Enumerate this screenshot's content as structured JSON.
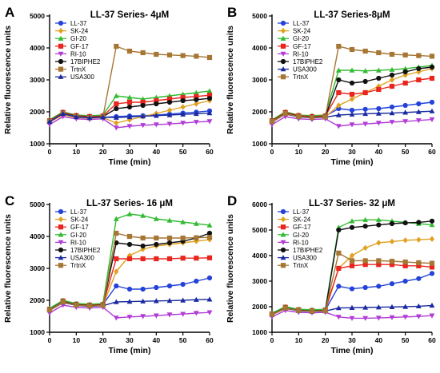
{
  "chart_data": [
    {
      "panel": "A",
      "type": "line",
      "title": "LL-37 Series- 4μM",
      "xlabel": "Time (min)",
      "ylabel": "Relative fluorescence units",
      "xlim": [
        0,
        60
      ],
      "ylim": [
        1000,
        5000
      ],
      "xticks": [
        "0",
        "10",
        "20",
        "30",
        "40",
        "50",
        "60"
      ],
      "yticks": [
        "1000",
        "2000",
        "3000",
        "4000",
        "5000"
      ],
      "x": [
        0,
        5,
        10,
        15,
        20,
        25,
        30,
        35,
        40,
        45,
        50,
        55,
        60
      ],
      "legend_position": "top-left",
      "series": [
        {
          "name": "LL-37",
          "color": "#2342d8",
          "marker": "circle",
          "values": [
            1700,
            1950,
            1850,
            1820,
            1830,
            1850,
            1870,
            1880,
            1900,
            1930,
            1960,
            1990,
            2030
          ]
        },
        {
          "name": "SK-24",
          "color": "#e0a020",
          "marker": "diamond",
          "values": [
            1680,
            1900,
            1820,
            1800,
            1820,
            1650,
            1750,
            1850,
            1950,
            2050,
            2150,
            2250,
            2350
          ]
        },
        {
          "name": "GI-20",
          "color": "#33bb33",
          "marker": "triangle",
          "values": [
            1750,
            2000,
            1900,
            1880,
            1900,
            2500,
            2450,
            2400,
            2450,
            2500,
            2550,
            2600,
            2650
          ]
        },
        {
          "name": "GF-17",
          "color": "#e8261e",
          "marker": "square",
          "values": [
            1720,
            1980,
            1880,
            1850,
            1870,
            2250,
            2300,
            2300,
            2350,
            2400,
            2450,
            2480,
            2520
          ]
        },
        {
          "name": "RI-10",
          "color": "#b23cd6",
          "marker": "triangle-down",
          "values": [
            1600,
            1850,
            1780,
            1760,
            1780,
            1500,
            1550,
            1580,
            1600,
            1620,
            1650,
            1680,
            1700
          ]
        },
        {
          "name": "17BIPHE2",
          "color": "#111111",
          "marker": "circle",
          "values": [
            1710,
            1960,
            1860,
            1830,
            1850,
            2100,
            2150,
            2200,
            2250,
            2300,
            2350,
            2380,
            2420
          ]
        },
        {
          "name": "TrtnX",
          "color": "#a67634",
          "marker": "square",
          "values": [
            1700,
            1950,
            1850,
            1820,
            1840,
            4050,
            3900,
            3850,
            3800,
            3780,
            3760,
            3740,
            3700
          ]
        },
        {
          "name": "USA300",
          "color": "#1a2aa0",
          "marker": "triangle",
          "values": [
            1690,
            1940,
            1840,
            1810,
            1830,
            1820,
            1840,
            1860,
            1880,
            1900,
            1920,
            1940,
            1960
          ]
        }
      ]
    },
    {
      "panel": "B",
      "type": "line",
      "title": "LL-37 Series-8μM",
      "xlabel": "Time (min)",
      "ylabel": "Relative fluorescence units",
      "xlim": [
        0,
        60
      ],
      "ylim": [
        1000,
        5000
      ],
      "xticks": [
        "0",
        "10",
        "20",
        "30",
        "40",
        "50",
        "60"
      ],
      "yticks": [
        "1000",
        "2000",
        "3000",
        "4000",
        "5000"
      ],
      "x": [
        0,
        5,
        10,
        15,
        20,
        25,
        30,
        35,
        40,
        45,
        50,
        55,
        60
      ],
      "legend_position": "top-left",
      "series": [
        {
          "name": "LL-37",
          "color": "#2342d8",
          "marker": "circle",
          "values": [
            1700,
            1950,
            1880,
            1850,
            1870,
            2100,
            2050,
            2080,
            2100,
            2150,
            2200,
            2250,
            2300
          ]
        },
        {
          "name": "SK-24",
          "color": "#e0a020",
          "marker": "diamond",
          "values": [
            1680,
            1920,
            1850,
            1820,
            1840,
            2200,
            2400,
            2600,
            2800,
            3000,
            3150,
            3250,
            3350
          ]
        },
        {
          "name": "GI-20",
          "color": "#33bb33",
          "marker": "triangle",
          "values": [
            1750,
            2000,
            1900,
            1880,
            1900,
            3300,
            3300,
            3280,
            3300,
            3320,
            3350,
            3400,
            3450
          ]
        },
        {
          "name": "GF-17",
          "color": "#e8261e",
          "marker": "square",
          "values": [
            1720,
            1980,
            1880,
            1850,
            1870,
            2600,
            2550,
            2600,
            2700,
            2800,
            2900,
            3000,
            3050
          ]
        },
        {
          "name": "RI-10",
          "color": "#b23cd6",
          "marker": "triangle-down",
          "values": [
            1600,
            1850,
            1780,
            1760,
            1780,
            1550,
            1600,
            1620,
            1650,
            1680,
            1700,
            1730,
            1760
          ]
        },
        {
          "name": "17BIPHE2",
          "color": "#111111",
          "marker": "circle",
          "values": [
            1710,
            1960,
            1860,
            1830,
            1850,
            3000,
            2900,
            2950,
            3050,
            3150,
            3250,
            3350,
            3400
          ]
        },
        {
          "name": "USA300",
          "color": "#1a2aa0",
          "marker": "triangle",
          "values": [
            1690,
            1940,
            1840,
            1810,
            1830,
            1900,
            1920,
            1940,
            1950,
            1960,
            1980,
            2000,
            2020
          ]
        },
        {
          "name": "TrtnX",
          "color": "#a67634",
          "marker": "square",
          "values": [
            1700,
            1950,
            1850,
            1820,
            1840,
            4050,
            3950,
            3900,
            3850,
            3800,
            3780,
            3760,
            3740
          ]
        }
      ]
    },
    {
      "panel": "C",
      "type": "line",
      "title": "LL-37 Series- 16 μM",
      "xlabel": "Time (min)",
      "ylabel": "Relative fluorescence units",
      "xlim": [
        0,
        60
      ],
      "ylim": [
        1000,
        5000
      ],
      "xticks": [
        "0",
        "10",
        "20",
        "30",
        "40",
        "50",
        "60"
      ],
      "yticks": [
        "1000",
        "2000",
        "3000",
        "4000",
        "5000"
      ],
      "x": [
        0,
        5,
        10,
        15,
        20,
        25,
        30,
        35,
        40,
        45,
        50,
        55,
        60
      ],
      "legend_position": "top-left",
      "series": [
        {
          "name": "LL-37",
          "color": "#2342d8",
          "marker": "circle",
          "values": [
            1700,
            1950,
            1880,
            1850,
            1870,
            2450,
            2350,
            2350,
            2400,
            2450,
            2500,
            2600,
            2700
          ]
        },
        {
          "name": "SK-24",
          "color": "#e0a020",
          "marker": "diamond",
          "values": [
            1680,
            1920,
            1850,
            1820,
            1840,
            2900,
            3400,
            3600,
            3700,
            3750,
            3800,
            3850,
            3900
          ]
        },
        {
          "name": "GF-17",
          "color": "#e8261e",
          "marker": "square",
          "values": [
            1720,
            1980,
            1880,
            1850,
            1870,
            3300,
            3300,
            3300,
            3300,
            3300,
            3320,
            3320,
            3330
          ]
        },
        {
          "name": "GI-20",
          "color": "#33bb33",
          "marker": "triangle",
          "values": [
            1750,
            2000,
            1900,
            1880,
            1900,
            4550,
            4700,
            4650,
            4550,
            4500,
            4450,
            4400,
            4350
          ]
        },
        {
          "name": "RI-10",
          "color": "#b23cd6",
          "marker": "triangle-down",
          "values": [
            1600,
            1850,
            1780,
            1760,
            1780,
            1450,
            1480,
            1500,
            1520,
            1550,
            1570,
            1600,
            1620
          ]
        },
        {
          "name": "17BIPHE2",
          "color": "#111111",
          "marker": "circle",
          "values": [
            1710,
            1960,
            1860,
            1830,
            1850,
            3800,
            3750,
            3700,
            3750,
            3800,
            3850,
            3950,
            4100
          ]
        },
        {
          "name": "USA300",
          "color": "#1a2aa0",
          "marker": "triangle",
          "values": [
            1690,
            1940,
            1840,
            1810,
            1830,
            1950,
            1960,
            1970,
            1980,
            1990,
            2000,
            2020,
            2030
          ]
        },
        {
          "name": "TrtnX",
          "color": "#a67634",
          "marker": "square",
          "values": [
            1700,
            1950,
            1850,
            1820,
            1840,
            4100,
            4000,
            3950,
            3950,
            3950,
            3950,
            3960,
            3970
          ]
        }
      ]
    },
    {
      "panel": "D",
      "type": "line",
      "title": "LL-37 Series- 32 μM",
      "xlabel": "Time (min)",
      "ylabel": "Relative fluorescence units",
      "xlim": [
        0,
        60
      ],
      "ylim": [
        1000,
        6000
      ],
      "xticks": [
        "0",
        "10",
        "20",
        "30",
        "40",
        "50",
        "60"
      ],
      "yticks": [
        "1000",
        "2000",
        "3000",
        "4000",
        "5000",
        "6000"
      ],
      "x": [
        0,
        5,
        10,
        15,
        20,
        25,
        30,
        35,
        40,
        45,
        50,
        55,
        60
      ],
      "legend_position": "top-left",
      "series": [
        {
          "name": "LL-37",
          "color": "#2342d8",
          "marker": "circle",
          "values": [
            1700,
            1950,
            1880,
            1850,
            1870,
            2800,
            2700,
            2750,
            2800,
            2900,
            3000,
            3100,
            3300
          ]
        },
        {
          "name": "SK-24",
          "color": "#e0a020",
          "marker": "diamond",
          "values": [
            1680,
            1920,
            1850,
            1820,
            1840,
            3500,
            4000,
            4300,
            4500,
            4550,
            4600,
            4620,
            4650
          ]
        },
        {
          "name": "GF-17",
          "color": "#e8261e",
          "marker": "square",
          "values": [
            1720,
            1980,
            1880,
            1850,
            1870,
            3500,
            3600,
            3650,
            3650,
            3650,
            3600,
            3600,
            3550
          ]
        },
        {
          "name": "GI-20",
          "color": "#33bb33",
          "marker": "triangle",
          "values": [
            1750,
            2000,
            1900,
            1880,
            1900,
            5100,
            5350,
            5400,
            5400,
            5350,
            5300,
            5250,
            5200
          ]
        },
        {
          "name": "RI-10",
          "color": "#b23cd6",
          "marker": "triangle-down",
          "values": [
            1600,
            1850,
            1780,
            1760,
            1780,
            1600,
            1550,
            1550,
            1560,
            1580,
            1600,
            1620,
            1650
          ]
        },
        {
          "name": "17BIPHE2",
          "color": "#111111",
          "marker": "circle",
          "values": [
            1710,
            1960,
            1860,
            1830,
            1850,
            5000,
            5100,
            5150,
            5200,
            5250,
            5280,
            5300,
            5350
          ]
        },
        {
          "name": "USA300",
          "color": "#1a2aa0",
          "marker": "triangle",
          "values": [
            1690,
            1940,
            1840,
            1810,
            1830,
            1950,
            1960,
            1970,
            1980,
            1990,
            2000,
            2020,
            2050
          ]
        },
        {
          "name": "TrtnX",
          "color": "#a67634",
          "marker": "square",
          "values": [
            1700,
            1950,
            1850,
            1820,
            1840,
            4100,
            3800,
            3800,
            3800,
            3780,
            3750,
            3720,
            3700
          ]
        }
      ]
    }
  ]
}
